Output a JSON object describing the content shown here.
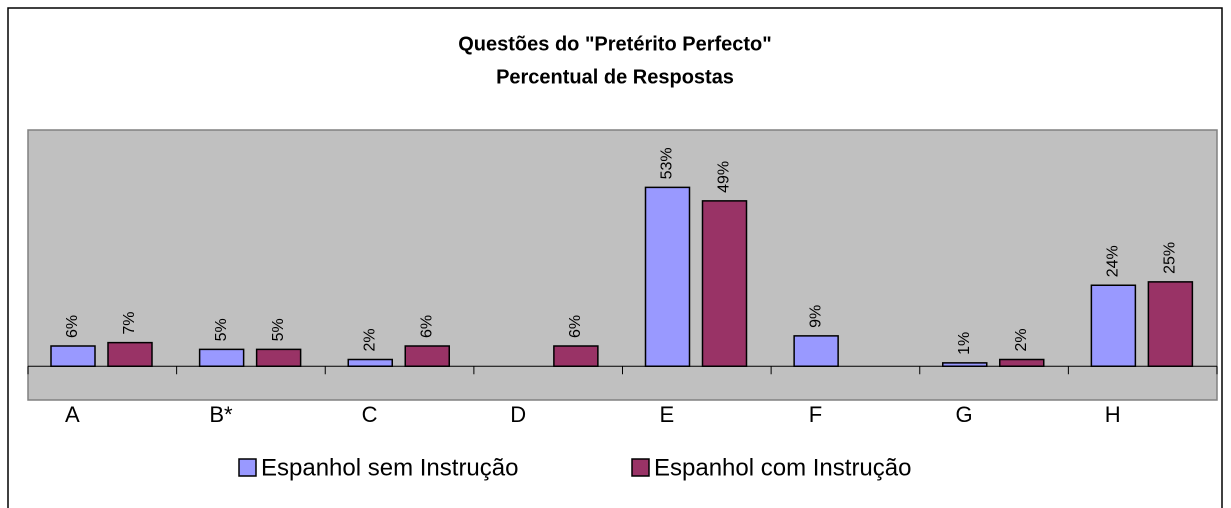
{
  "chart_data": {
    "type": "bar",
    "title": "Questões do \"Pretérito Perfecto\"",
    "subtitle": "Percentual de Respostas",
    "categories": [
      "A",
      "B*",
      "C",
      "D",
      "E",
      "F",
      "G",
      "H"
    ],
    "series": [
      {
        "name": "Espanhol sem Instrução",
        "color": "#9999ff",
        "values": [
          6,
          5,
          2,
          null,
          53,
          9,
          1,
          24
        ],
        "value_labels": [
          "6%",
          "5%",
          "2%",
          null,
          "53%",
          "9%",
          "1%",
          "24%"
        ]
      },
      {
        "name": "Espanhol com Instrução",
        "color": "#993366",
        "values": [
          7,
          5,
          6,
          6,
          49,
          null,
          2,
          25
        ],
        "value_labels": [
          "7%",
          "5%",
          "6%",
          "6%",
          "49%",
          null,
          "2%",
          "25%"
        ]
      }
    ],
    "ylim": [
      -10,
      70
    ],
    "legend": "bottom"
  }
}
